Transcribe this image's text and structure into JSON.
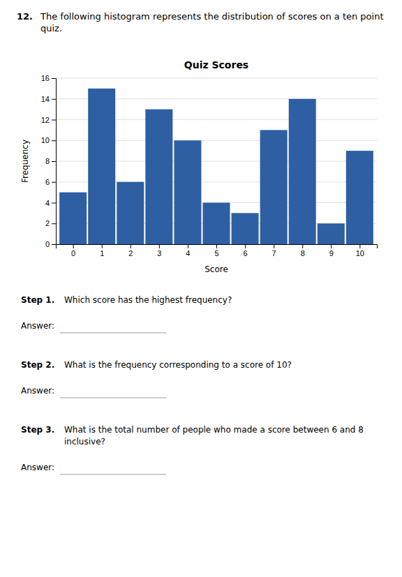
{
  "chart_data": {
    "type": "bar",
    "title": "Quiz Scores",
    "x_label": "Score",
    "y_label": "Frequency",
    "x": [
      0,
      1,
      2,
      3,
      4,
      5,
      6,
      7,
      8,
      9,
      10
    ],
    "values": [
      5,
      15,
      6,
      13,
      10,
      4,
      3,
      11,
      14,
      2,
      9
    ],
    "color": "#2e5fa3",
    "xlim": [
      -0.6,
      10.6
    ],
    "xticks": [
      0,
      1,
      2,
      3,
      4,
      5,
      6,
      7,
      8,
      9,
      10
    ],
    "ylim": [
      0,
      16
    ],
    "yticks": [
      0,
      2,
      4,
      6,
      8,
      10,
      12,
      14,
      16
    ],
    "grid": true,
    "annotations": [
      "12.",
      "The following histogram represents the distribution of scores on a ten point quiz.",
      "Step 1.",
      "Which score has the highest frequency?",
      "Answer:",
      "Step 2.",
      "What is the frequency corresponding to a score of 10?",
      "Answer:",
      "Step 3.",
      "What is the total number of people who made a score between 6 and 8",
      "inclusive?",
      "Answer:"
    ]
  }
}
